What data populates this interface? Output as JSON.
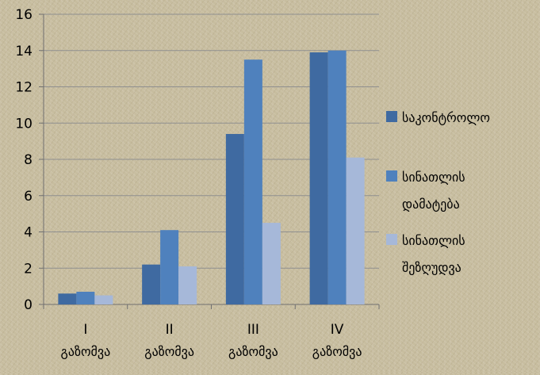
{
  "chart_data": {
    "type": "bar",
    "categories": [
      [
        "I",
        "გაზომვა"
      ],
      [
        "II",
        "გაზომვა"
      ],
      [
        "III",
        "გაზომვა"
      ],
      [
        "IV",
        "გაზომვა"
      ]
    ],
    "series": [
      {
        "name": "საკონტროლო",
        "values": [
          0.6,
          2.2,
          9.4,
          13.9
        ],
        "color": "#3f6aa1"
      },
      {
        "name": "სინათლის დამატება",
        "values": [
          0.7,
          4.1,
          13.5,
          14.0
        ],
        "color": "#4f81bd"
      },
      {
        "name": "სინათლის შეზღუდვა",
        "values": [
          0.5,
          2.1,
          4.5,
          8.1
        ],
        "color": "#a6b8d9"
      }
    ],
    "legend": [
      {
        "lines": [
          "საკონტროლო"
        ]
      },
      {
        "lines": [
          "სინათლის",
          "დამატება"
        ]
      },
      {
        "lines": [
          "სინათლის",
          "შეზღუდვა"
        ]
      }
    ],
    "ylim": [
      0,
      16
    ],
    "yticks": [
      0,
      2,
      4,
      6,
      8,
      10,
      12,
      14,
      16
    ],
    "grid": true,
    "legend_position": "right"
  }
}
